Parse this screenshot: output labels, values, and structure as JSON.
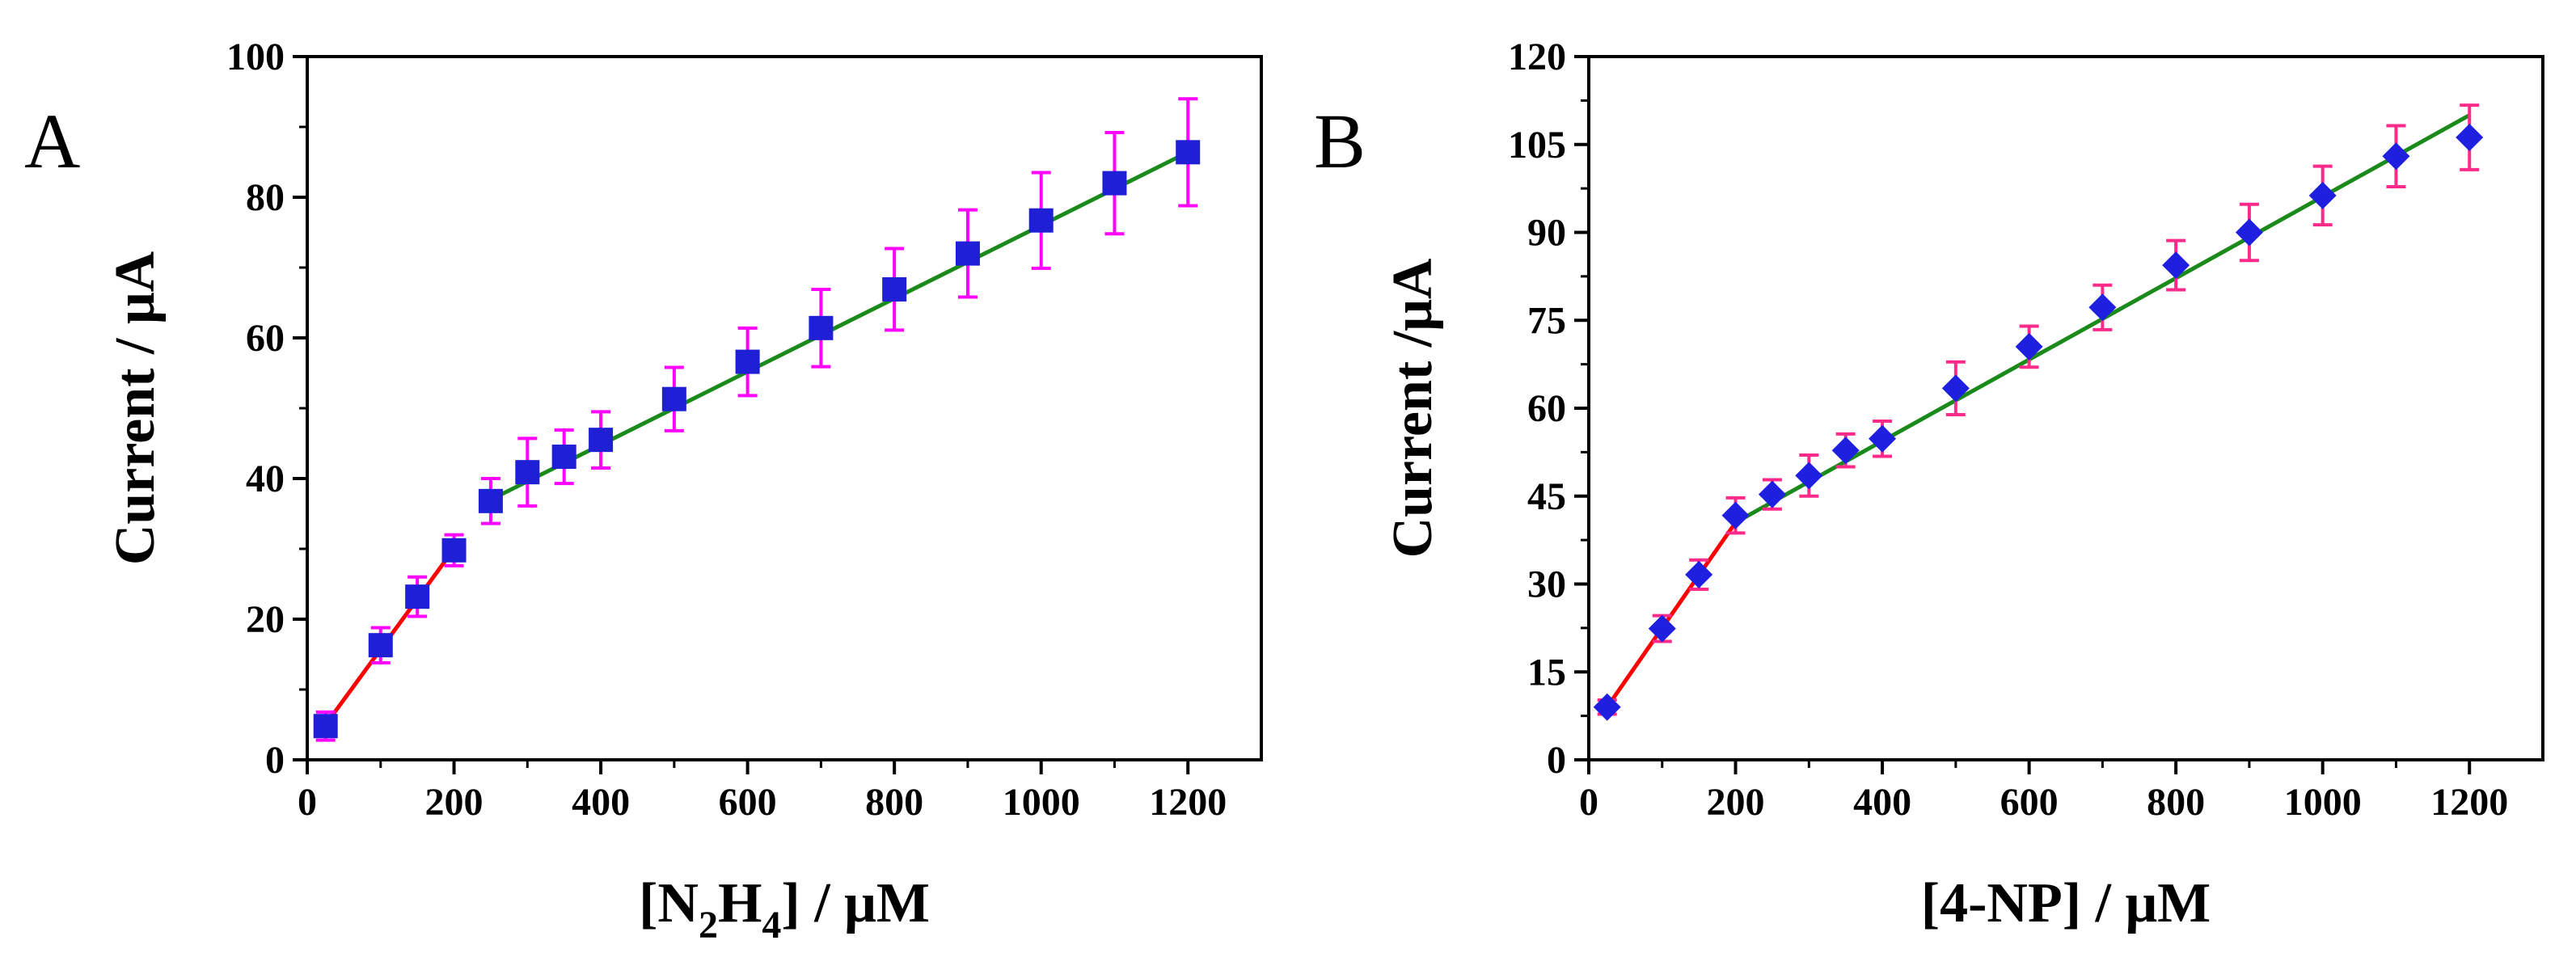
{
  "chart_data": [
    {
      "type": "scatter",
      "panel_label": "A",
      "xlabel_parts": {
        "open": "[N",
        "sub1": "2",
        "mid": "H",
        "sub2": "4",
        "close": "] / μM"
      },
      "ylabel": "Current / μA",
      "xlim": [
        0,
        1300
      ],
      "ylim": [
        0,
        100
      ],
      "xticks": [
        0,
        200,
        400,
        600,
        800,
        1000,
        1200
      ],
      "xtick_labels": [
        "0",
        "200",
        "400",
        "600",
        "800",
        "1000",
        "1200"
      ],
      "yticks": [
        0,
        20,
        40,
        60,
        80,
        100
      ],
      "ytick_labels": [
        "0",
        "20",
        "40",
        "60",
        "80",
        "100"
      ],
      "marker": "square",
      "colors": {
        "marker": "#1f1fd6",
        "error": "#ff00ff",
        "fit_low": "#ff0000",
        "fit_high": "#1a8a1a"
      },
      "series": [
        {
          "name": "data",
          "x": [
            25,
            100,
            150,
            200,
            250,
            300,
            350,
            400,
            500,
            600,
            700,
            800,
            900,
            1000,
            1100,
            1200
          ],
          "y": [
            4.8,
            16.3,
            23.2,
            29.8,
            36.8,
            40.9,
            43.1,
            45.5,
            51.3,
            56.6,
            61.4,
            66.9,
            72.0,
            76.7,
            82.0,
            86.4
          ],
          "err": [
            2.0,
            2.5,
            2.8,
            2.2,
            3.2,
            4.8,
            3.8,
            4.0,
            4.5,
            4.8,
            5.5,
            5.8,
            6.2,
            6.8,
            7.2,
            7.6
          ]
        }
      ],
      "fits": [
        {
          "name": "fit-low",
          "x": [
            25,
            200
          ],
          "y": [
            5.0,
            30.0
          ]
        },
        {
          "name": "fit-high",
          "x": [
            250,
            1200
          ],
          "y": [
            37.0,
            86.4
          ]
        }
      ]
    },
    {
      "type": "scatter",
      "panel_label": "B",
      "xlabel": "[4-NP] / μM",
      "ylabel": "Current /μA",
      "xlim": [
        0,
        1300
      ],
      "ylim": [
        0,
        120
      ],
      "xticks": [
        0,
        200,
        400,
        600,
        800,
        1000,
        1200
      ],
      "xtick_labels": [
        "0",
        "200",
        "400",
        "600",
        "800",
        "1000",
        "1200"
      ],
      "yticks": [
        0,
        15,
        30,
        45,
        60,
        75,
        90,
        105,
        120
      ],
      "ytick_labels": [
        "0",
        "15",
        "30",
        "45",
        "60",
        "75",
        "90",
        "105",
        "120"
      ],
      "marker": "diamond",
      "colors": {
        "marker": "#1f1fe0",
        "error": "#ff2a8a",
        "fit_low": "#ff0000",
        "fit_high": "#1a8a1a"
      },
      "series": [
        {
          "name": "data",
          "x": [
            25,
            100,
            150,
            200,
            250,
            300,
            350,
            400,
            500,
            600,
            700,
            800,
            900,
            1000,
            1100,
            1200
          ],
          "y": [
            9.0,
            22.4,
            31.6,
            41.7,
            45.3,
            48.5,
            52.8,
            54.8,
            63.4,
            70.5,
            77.2,
            84.4,
            90.0,
            96.3,
            103.0,
            106.2
          ],
          "err": [
            1.2,
            2.2,
            2.5,
            3.0,
            2.5,
            3.5,
            2.8,
            3.0,
            4.5,
            3.5,
            3.8,
            4.2,
            4.8,
            5.0,
            5.2,
            5.5
          ]
        }
      ],
      "fits": [
        {
          "name": "fit-low",
          "x": [
            25,
            200
          ],
          "y": [
            9.0,
            40.5
          ]
        },
        {
          "name": "fit-high",
          "x": [
            200,
            1200
          ],
          "y": [
            40.5,
            110.0
          ]
        }
      ]
    }
  ]
}
